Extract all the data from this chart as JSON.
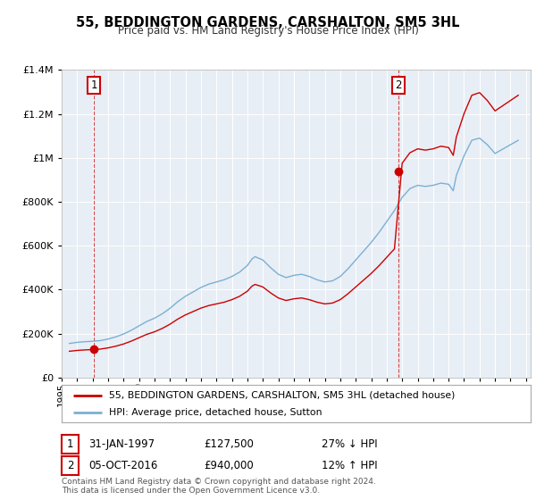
{
  "title": "55, BEDDINGTON GARDENS, CARSHALTON, SM5 3HL",
  "subtitle": "Price paid vs. HM Land Registry's House Price Index (HPI)",
  "legend_line1": "55, BEDDINGTON GARDENS, CARSHALTON, SM5 3HL (detached house)",
  "legend_line2": "HPI: Average price, detached house, Sutton",
  "annotation1_date": "31-JAN-1997",
  "annotation1_price": "£127,500",
  "annotation1_hpi": "27% ↓ HPI",
  "annotation2_date": "05-OCT-2016",
  "annotation2_price": "£940,000",
  "annotation2_hpi": "12% ↑ HPI",
  "footer": "Contains HM Land Registry data © Crown copyright and database right 2024.\nThis data is licensed under the Open Government Licence v3.0.",
  "sale1_year": 1997.08,
  "sale1_value": 127500,
  "sale2_year": 2016.75,
  "sale2_value": 940000,
  "hpi_color": "#7ab0d4",
  "price_color": "#cc0000",
  "background_color": "#f0f0f0",
  "plot_bg": "#e8eef5",
  "ylim": [
    0,
    1400000
  ],
  "xlim_start": 1995.0,
  "xlim_end": 2025.3,
  "yticks": [
    0,
    200000,
    400000,
    600000,
    800000,
    1000000,
    1200000,
    1400000
  ],
  "hpi_years": [
    1995.5,
    1996.0,
    1996.5,
    1997.0,
    1997.5,
    1998.0,
    1998.5,
    1999.0,
    1999.5,
    2000.0,
    2000.5,
    2001.0,
    2001.5,
    2002.0,
    2002.5,
    2003.0,
    2003.5,
    2004.0,
    2004.5,
    2005.0,
    2005.5,
    2006.0,
    2006.5,
    2007.0,
    2007.3,
    2007.5,
    2008.0,
    2008.5,
    2009.0,
    2009.5,
    2010.0,
    2010.5,
    2011.0,
    2011.5,
    2012.0,
    2012.5,
    2013.0,
    2013.5,
    2014.0,
    2014.5,
    2015.0,
    2015.5,
    2016.0,
    2016.5,
    2017.0,
    2017.5,
    2018.0,
    2018.5,
    2019.0,
    2019.5,
    2020.0,
    2020.3,
    2020.5,
    2021.0,
    2021.5,
    2022.0,
    2022.5,
    2023.0,
    2023.5,
    2024.0,
    2024.5
  ],
  "hpi_values": [
    155000,
    160000,
    163000,
    165000,
    168000,
    175000,
    185000,
    198000,
    215000,
    235000,
    255000,
    270000,
    290000,
    315000,
    345000,
    370000,
    390000,
    410000,
    425000,
    435000,
    445000,
    460000,
    480000,
    510000,
    540000,
    550000,
    535000,
    500000,
    470000,
    455000,
    465000,
    470000,
    460000,
    445000,
    435000,
    440000,
    460000,
    495000,
    535000,
    575000,
    615000,
    660000,
    710000,
    760000,
    820000,
    860000,
    875000,
    870000,
    875000,
    885000,
    880000,
    850000,
    920000,
    1010000,
    1080000,
    1090000,
    1060000,
    1020000,
    1040000,
    1060000,
    1080000
  ]
}
